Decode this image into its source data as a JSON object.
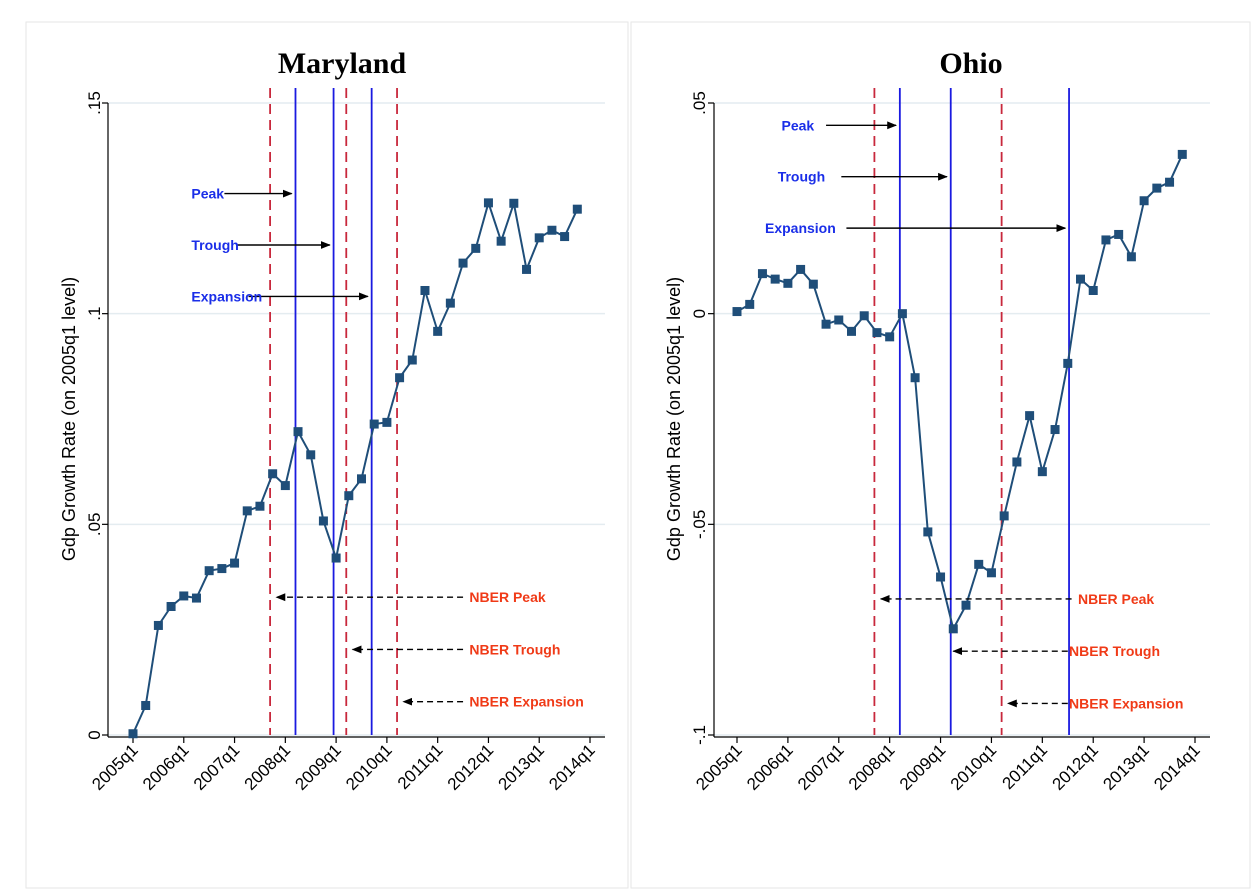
{
  "chart_data": [
    {
      "type": "line",
      "title": "Maryland",
      "ylabel": "Gdp Growth Rate (on 2005q1 level)",
      "xlabel": "",
      "x_tick_labels": [
        "2005q1",
        "2006q1",
        "2007q1",
        "2008q1",
        "2009q1",
        "2010q1",
        "2011q1",
        "2012q1",
        "2013q1",
        "2014q1"
      ],
      "y_tick_labels": [
        "0",
        ".05",
        ".1",
        ".15"
      ],
      "y_ticks": [
        0,
        0.05,
        0.1,
        0.15
      ],
      "ylim": [
        0,
        0.15
      ],
      "xlim": [
        0,
        36
      ],
      "grid": true,
      "marker": "square",
      "series": [
        {
          "x": [
            0,
            1,
            2,
            3,
            4,
            5,
            6,
            7,
            8,
            9,
            10,
            11,
            12,
            13,
            14,
            15,
            16,
            17,
            18,
            19,
            20,
            21,
            22,
            23,
            24,
            25,
            26,
            27,
            28,
            29,
            30,
            31,
            32,
            33,
            34,
            35
          ],
          "values": [
            0.0003,
            0.007,
            0.026,
            0.0305,
            0.033,
            0.0325,
            0.039,
            0.0395,
            0.0408,
            0.0532,
            0.0543,
            0.062,
            0.0592,
            0.072,
            0.0665,
            0.0508,
            0.042,
            0.0568,
            0.0608,
            0.0738,
            0.0742,
            0.0848,
            0.089,
            0.1055,
            0.0958,
            0.1025,
            0.112,
            0.1155,
            0.1263,
            0.1172,
            0.1262,
            0.1105,
            0.118,
            0.1198,
            0.1183,
            0.1248
          ]
        }
      ],
      "vlines": [
        {
          "x": 10.8,
          "style": "dashed",
          "color": "#c8283c"
        },
        {
          "x": 12.8,
          "style": "solid",
          "color": "#1a1ae0"
        },
        {
          "x": 15.8,
          "style": "solid",
          "color": "#1a1ae0"
        },
        {
          "x": 16.8,
          "style": "dashed",
          "color": "#c8283c"
        },
        {
          "x": 18.8,
          "style": "solid",
          "color": "#1a1ae0"
        },
        {
          "x": 20.8,
          "style": "dashed",
          "color": "#c8283c"
        }
      ],
      "annotations": [
        {
          "text": "Peak",
          "color": "#1a2ee8",
          "text_x": 4.6,
          "text_y": 0.1285,
          "arrow_from_x": 7.2,
          "arrow_to_x": 12.5,
          "arrow_y": 0.1285,
          "arrow_style": "solid"
        },
        {
          "text": "Trough",
          "color": "#1a2ee8",
          "text_x": 4.6,
          "text_y": 0.1163,
          "arrow_from_x": 8.2,
          "arrow_to_x": 15.5,
          "arrow_y": 0.1163,
          "arrow_style": "solid"
        },
        {
          "text": "Expansion",
          "color": "#1a2ee8",
          "text_x": 4.6,
          "text_y": 0.1041,
          "arrow_from_x": 9.1,
          "arrow_to_x": 18.5,
          "arrow_y": 0.1041,
          "arrow_style": "solid"
        },
        {
          "text": "NBER Peak",
          "color": "#f03a17",
          "text_x": 26.5,
          "text_y": 0.0327,
          "arrow_from_x": 26.0,
          "arrow_to_x": 11.3,
          "arrow_y": 0.0327,
          "arrow_style": "dashed"
        },
        {
          "text": "NBER Trough",
          "color": "#f03a17",
          "text_x": 26.5,
          "text_y": 0.0203,
          "arrow_from_x": 26.0,
          "arrow_to_x": 17.3,
          "arrow_y": 0.0203,
          "arrow_style": "dashed"
        },
        {
          "text": "NBER Expansion",
          "color": "#f03a17",
          "text_x": 26.5,
          "text_y": 0.0079,
          "arrow_from_x": 26.0,
          "arrow_to_x": 21.3,
          "arrow_y": 0.0079,
          "arrow_style": "dashed"
        }
      ],
      "line_color": "#1f4e79"
    },
    {
      "type": "line",
      "title": "Ohio",
      "ylabel": "Gdp Growth Rate (on 2005q1 level)",
      "xlabel": "",
      "x_tick_labels": [
        "2005q1",
        "2006q1",
        "2007q1",
        "2008q1",
        "2009q1",
        "2010q1",
        "2011q1",
        "2012q1",
        "2013q1",
        "2014q1"
      ],
      "y_tick_labels": [
        "-.1",
        "-.05",
        "0",
        ".05"
      ],
      "y_ticks": [
        -0.1,
        -0.05,
        0,
        0.05
      ],
      "ylim": [
        -0.1,
        0.05
      ],
      "xlim": [
        0,
        36
      ],
      "grid": true,
      "marker": "square",
      "series": [
        {
          "x": [
            0,
            1,
            2,
            3,
            4,
            5,
            6,
            7,
            8,
            9,
            10,
            11,
            12,
            13,
            14,
            15,
            16,
            17,
            18,
            19,
            20,
            21,
            22,
            23,
            24,
            25,
            26,
            27,
            28,
            29,
            30,
            31,
            32,
            33,
            34,
            35
          ],
          "values": [
            0.0005,
            0.0022,
            0.0095,
            0.0082,
            0.0072,
            0.0105,
            0.007,
            -0.0025,
            -0.0015,
            -0.0042,
            -0.0005,
            -0.0045,
            -0.0055,
            0.0,
            -0.0152,
            -0.0518,
            -0.0625,
            -0.0748,
            -0.0692,
            -0.0595,
            -0.0615,
            -0.048,
            -0.0352,
            -0.0242,
            -0.0375,
            -0.0275,
            -0.0118,
            0.0082,
            0.0055,
            0.0175,
            0.0188,
            0.0135,
            0.0268,
            0.0298,
            0.0312,
            0.0378
          ]
        }
      ],
      "vlines": [
        {
          "x": 10.8,
          "style": "dashed",
          "color": "#c8283c"
        },
        {
          "x": 12.8,
          "style": "solid",
          "color": "#1a1ae0"
        },
        {
          "x": 16.8,
          "style": "solid",
          "color": "#1a1ae0"
        },
        {
          "x": 20.8,
          "style": "dashed",
          "color": "#c8283c"
        },
        {
          "x": 26.1,
          "style": "solid",
          "color": "#1a1ae0"
        }
      ],
      "annotations": [
        {
          "text": "Peak",
          "color": "#1a2ee8",
          "text_x": 3.5,
          "text_y": 0.0447,
          "arrow_from_x": 7.0,
          "arrow_to_x": 12.5,
          "arrow_y": 0.0447,
          "arrow_style": "solid"
        },
        {
          "text": "Trough",
          "color": "#1a2ee8",
          "text_x": 3.2,
          "text_y": 0.0325,
          "arrow_from_x": 8.2,
          "arrow_to_x": 16.5,
          "arrow_y": 0.0325,
          "arrow_style": "solid"
        },
        {
          "text": "Expansion",
          "color": "#1a2ee8",
          "text_x": 2.2,
          "text_y": 0.0203,
          "arrow_from_x": 8.6,
          "arrow_to_x": 25.8,
          "arrow_y": 0.0203,
          "arrow_style": "solid"
        },
        {
          "text": "NBER Peak",
          "color": "#f03a17",
          "text_x": 26.8,
          "text_y": -0.0677,
          "arrow_from_x": 26.3,
          "arrow_to_x": 11.3,
          "arrow_y": -0.0677,
          "arrow_style": "dashed"
        },
        {
          "text": "NBER Trough",
          "color": "#f03a17",
          "text_x": 26.1,
          "text_y": -0.0801,
          "arrow_from_x": 26.0,
          "arrow_to_x": 17.0,
          "arrow_y": -0.0801,
          "arrow_style": "dashed"
        },
        {
          "text": "NBER Expansion",
          "color": "#f03a17",
          "text_x": 26.1,
          "text_y": -0.0925,
          "arrow_from_x": 26.0,
          "arrow_to_x": 21.3,
          "arrow_y": -0.0925,
          "arrow_style": "dashed"
        }
      ],
      "line_color": "#1f4e79"
    }
  ]
}
